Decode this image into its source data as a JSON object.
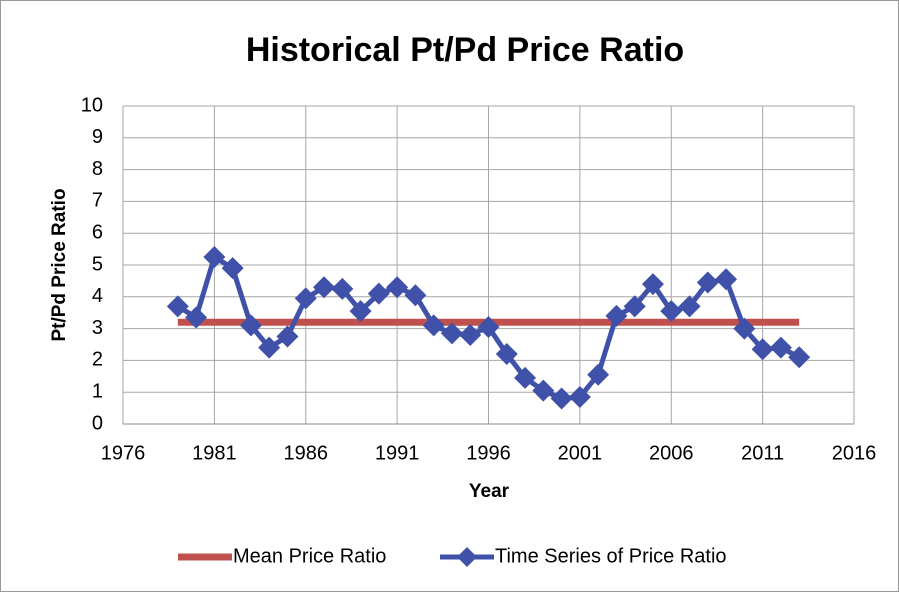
{
  "chart_data": {
    "type": "line",
    "title": "Historical Pt/Pd Price Ratio",
    "x_label": "Year",
    "y_label": "Pt/Pd Price Ratio",
    "xlim": [
      1976,
      2016
    ],
    "xticks": [
      1976,
      1981,
      1986,
      1991,
      1996,
      2001,
      2006,
      2011,
      2016
    ],
    "ylim": [
      0,
      10
    ],
    "yticks": [
      0,
      1,
      2,
      3,
      4,
      5,
      6,
      7,
      8,
      9,
      10
    ],
    "grid": true,
    "legend": "bottom",
    "series": [
      {
        "name": "Mean Price Ratio",
        "color": "#c0504d",
        "marker": "none",
        "x": [
          1979,
          2013
        ],
        "values": [
          3.2,
          3.2
        ]
      },
      {
        "name": "Time Series of Price Ratio",
        "color": "#3f51a8",
        "marker": "diamond",
        "x": [
          1979,
          1980,
          1981,
          1982,
          1983,
          1984,
          1985,
          1986,
          1987,
          1988,
          1989,
          1990,
          1991,
          1992,
          1993,
          1994,
          1995,
          1996,
          1997,
          1998,
          1999,
          2000,
          2001,
          2002,
          2003,
          2004,
          2005,
          2006,
          2007,
          2008,
          2009,
          2010,
          2011,
          2012,
          2013
        ],
        "values": [
          3.7,
          3.35,
          5.25,
          4.9,
          3.1,
          2.4,
          2.75,
          3.95,
          4.3,
          4.25,
          3.55,
          4.1,
          4.3,
          4.05,
          3.1,
          2.85,
          2.8,
          3.05,
          2.2,
          1.45,
          1.05,
          0.8,
          0.85,
          1.55,
          3.4,
          3.7,
          4.4,
          3.55,
          3.7,
          4.45,
          4.55,
          3.0,
          2.35,
          2.4,
          2.1
        ]
      }
    ]
  }
}
